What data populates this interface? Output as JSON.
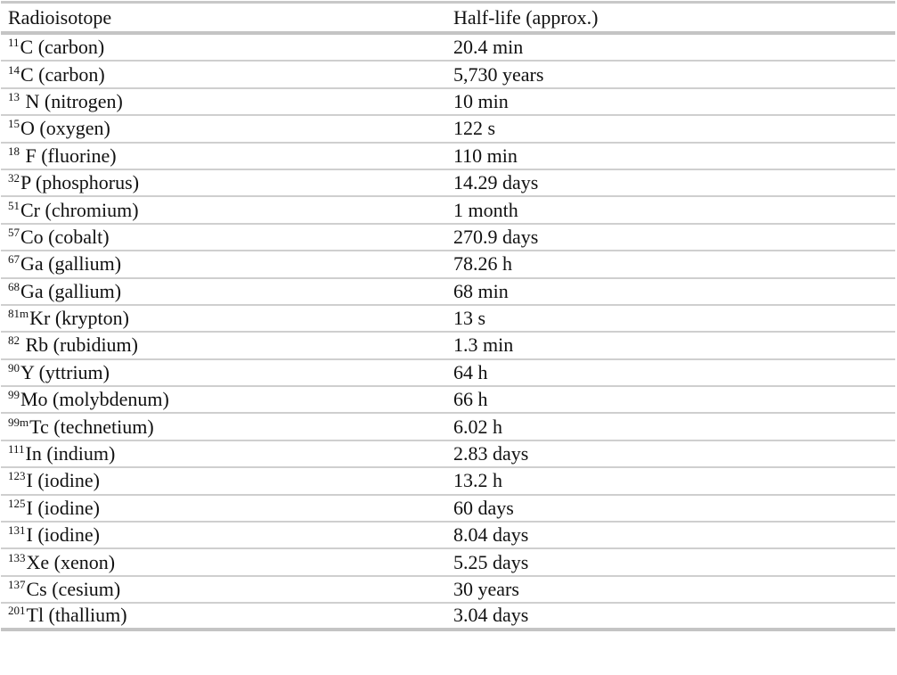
{
  "table": {
    "headers": {
      "radioisotope": "Radioisotope",
      "half_life": "Half-life (approx.)"
    },
    "rows": [
      {
        "mass": "11",
        "name": "C (carbon)",
        "half_life": "20.4 min"
      },
      {
        "mass": "14",
        "name": "C (carbon)",
        "half_life": "5,730 years"
      },
      {
        "mass": "13",
        "name": " N (nitrogen)",
        "half_life": "10 min"
      },
      {
        "mass": "15",
        "name": "O (oxygen)",
        "half_life": "122 s"
      },
      {
        "mass": "18",
        "name": " F (fluorine)",
        "half_life": "110 min"
      },
      {
        "mass": "32",
        "name": "P (phosphorus)",
        "half_life": "14.29 days"
      },
      {
        "mass": "51",
        "name": "Cr (chromium)",
        "half_life": "1 month"
      },
      {
        "mass": "57",
        "name": "Co (cobalt)",
        "half_life": "270.9 days"
      },
      {
        "mass": "67",
        "name": "Ga (gallium)",
        "half_life": "78.26 h"
      },
      {
        "mass": "68",
        "name": "Ga (gallium)",
        "half_life": "68 min"
      },
      {
        "mass": "81m",
        "name": "Kr (krypton)",
        "half_life": "13 s"
      },
      {
        "mass": "82",
        "name": " Rb (rubidium)",
        "half_life": "1.3 min"
      },
      {
        "mass": "90",
        "name": "Y (yttrium)",
        "half_life": "64 h"
      },
      {
        "mass": "99",
        "name": "Mo (molybdenum)",
        "half_life": "66 h"
      },
      {
        "mass": "99m",
        "name": "Tc (technetium)",
        "half_life": "6.02 h"
      },
      {
        "mass": "111",
        "name": "In (indium)",
        "half_life": "2.83 days"
      },
      {
        "mass": "123",
        "name": "I (iodine)",
        "half_life": "13.2 h"
      },
      {
        "mass": "125",
        "name": "I (iodine)",
        "half_life": "60 days"
      },
      {
        "mass": "131",
        "name": "I (iodine)",
        "half_life": "8.04 days"
      },
      {
        "mass": "133",
        "name": "Xe (xenon)",
        "half_life": "5.25 days"
      },
      {
        "mass": "137",
        "name": "Cs (cesium)",
        "half_life": "30 years"
      },
      {
        "mass": "201",
        "name": "Tl (thallium)",
        "half_life": "3.04 days"
      }
    ]
  }
}
